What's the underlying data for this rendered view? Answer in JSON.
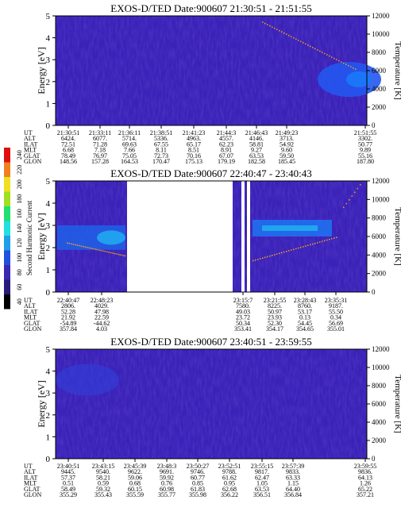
{
  "colorbar": {
    "label": "Second Harmonic Current",
    "ticks": [
      "40",
      "60",
      "80",
      "100",
      "120",
      "140",
      "160",
      "180",
      "200",
      "220",
      "240"
    ],
    "colors": [
      "#000000",
      "#2a1a7a",
      "#3a2ab0",
      "#2050e0",
      "#20a0e8",
      "#20e0e0",
      "#20e070",
      "#a0e020",
      "#f0e020",
      "#f08020",
      "#e01010"
    ]
  },
  "chart_data": [
    {
      "type": "heatmap",
      "title": "EXOS-D/TED   Date:900607   21:30:51 - 21:51:55",
      "ylabel": "Energy [eV]",
      "y2label": "Temperature [K]",
      "ylim": [
        0,
        5
      ],
      "y2lim": [
        0,
        12000
      ],
      "yticks": [
        "0",
        "1",
        "2",
        "3",
        "4",
        "5"
      ],
      "y2ticks": [
        "0",
        "2000",
        "4000",
        "6000",
        "8000",
        "10000",
        "12000"
      ],
      "row_labels": [
        "UT",
        "ALT",
        "ILAT",
        "MLT",
        "GLAT",
        "GLON"
      ],
      "columns": [
        [
          "21:30:51",
          "6424.",
          "72.51",
          "6.68",
          "78.49",
          "148.56"
        ],
        [
          "21:33:11",
          "6077.",
          "71.28",
          "7.18",
          "76.97",
          "157.28"
        ],
        [
          "21:36:11",
          "5714.",
          "69.63",
          "7.66",
          "75.05",
          "164.53"
        ],
        [
          "21:38:51",
          "5336.",
          "67.55",
          "8.11",
          "72.73",
          "170.47"
        ],
        [
          "21:41:23",
          "4963.",
          "65.17",
          "8.51",
          "70.16",
          "175.13"
        ],
        [
          "21:44:3",
          "4557.",
          "62.23",
          "8.91",
          "67.07",
          "179.19"
        ],
        [
          "21:46:43",
          "4146.",
          "58.81",
          "9.27",
          "63.53",
          "182.58"
        ],
        [
          "21:49:23",
          "3713.",
          "54.92",
          "9.60",
          "59.50",
          "185.45"
        ],
        [
          "21:51:55",
          "3302.",
          "50.77",
          "9.89",
          "55.16",
          "187.80"
        ]
      ]
    },
    {
      "type": "heatmap",
      "title": "EXOS-D/TED   Date:900607   22:40:47 - 23:40:43",
      "ylabel": "Energy [eV]",
      "y2label": "Temperature [K]",
      "ylim": [
        0,
        5
      ],
      "y2lim": [
        0,
        12000
      ],
      "yticks": [
        "0",
        "1",
        "2",
        "3",
        "4",
        "5"
      ],
      "y2ticks": [
        "0",
        "2000",
        "4000",
        "6000",
        "8000",
        "10000",
        "12000"
      ],
      "row_labels": [
        "UT",
        "ALT",
        "ILAT",
        "MLT",
        "GLAT",
        "GLON"
      ],
      "columns": [
        [
          "22:40:47",
          "2806.",
          "52.28",
          "21.92",
          "-54.89",
          "357.84"
        ],
        [
          "22:48:23",
          "4029.",
          "47.98",
          "22.59",
          "-44.62",
          "4.03"
        ],
        [
          "23:15:7",
          "7580.",
          "49.03",
          "23.72",
          "50.34",
          "353.41"
        ],
        [
          "23:21:55",
          "8225.",
          "50.97",
          "23.93",
          "52.30",
          "354.17"
        ],
        [
          "23:28:43",
          "8760.",
          "53.17",
          "0.13",
          "54.45",
          "354.65"
        ],
        [
          "23:35:31",
          "9187.",
          "55.50",
          "0.34",
          "56.69",
          "355.01"
        ]
      ]
    },
    {
      "type": "heatmap",
      "title": "EXOS-D/TED   Date:900607   23:40:51 - 23:59:55",
      "ylabel": "Energy [eV]",
      "y2label": "Temperature [K]",
      "ylim": [
        0,
        5
      ],
      "y2lim": [
        0,
        12000
      ],
      "yticks": [
        "0",
        "1",
        "2",
        "3",
        "4",
        "5"
      ],
      "y2ticks": [
        "0",
        "2000",
        "4000",
        "6000",
        "8000",
        "10000",
        "12000"
      ],
      "row_labels": [
        "UT",
        "ALT",
        "ILAT",
        "MLT",
        "GLAT",
        "GLON"
      ],
      "columns": [
        [
          "23:40:51",
          "9445.",
          "57.37",
          "0.51",
          "58.49",
          "355.29"
        ],
        [
          "23:43:15",
          "9540.",
          "58.21",
          "0.59",
          "59.32",
          "355.43"
        ],
        [
          "23:45:39",
          "9622.",
          "59.06",
          "0.68",
          "60.15",
          "355.59"
        ],
        [
          "23:48:3",
          "9691.",
          "59.92",
          "0.76",
          "60.98",
          "355.77"
        ],
        [
          "23:50:27",
          "9746.",
          "60.77",
          "0.85",
          "61.83",
          "355.98"
        ],
        [
          "23:52:51",
          "9788.",
          "61.62",
          "0.95",
          "62.68",
          "356.22"
        ],
        [
          "23:55:15",
          "9817.",
          "62.47",
          "1.05",
          "63.53",
          "356.51"
        ],
        [
          "23:57:39",
          "9833.",
          "63.33",
          "1.15",
          "64.40",
          "356.84"
        ],
        [
          "23:59:55",
          "9836.",
          "64.13",
          "1.26",
          "65.22",
          "357.21"
        ]
      ]
    }
  ]
}
